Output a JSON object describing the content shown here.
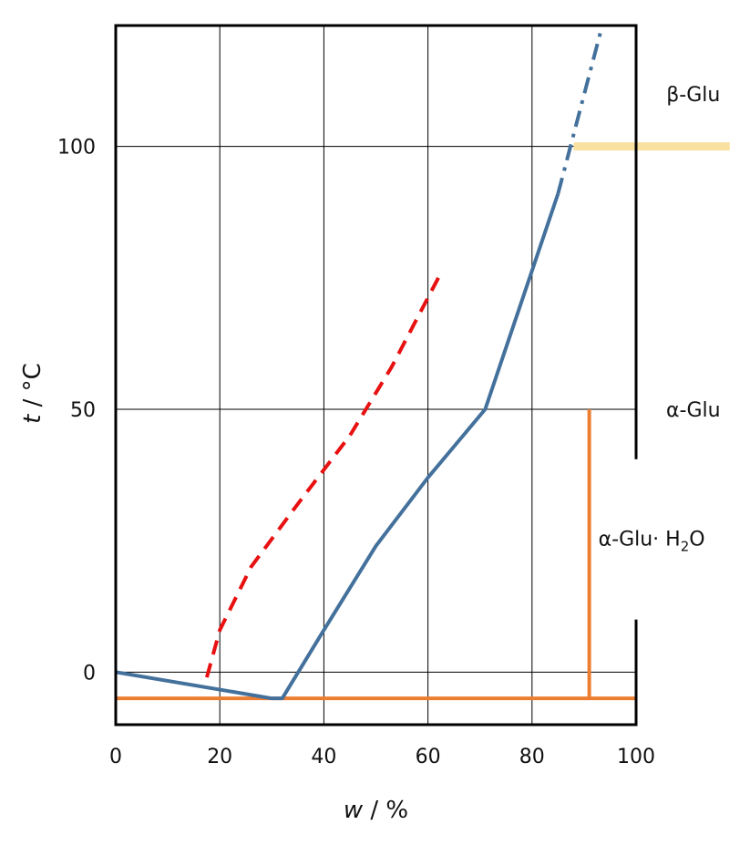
{
  "chart_data": {
    "type": "line",
    "xlabel": {
      "var": "w",
      "unit": " / %"
    },
    "ylabel": {
      "var": "t",
      "unit": " / °C"
    },
    "xlim": [
      0,
      100
    ],
    "ylim": [
      -10,
      123
    ],
    "x_ticks": [
      0,
      20,
      40,
      60,
      80,
      100
    ],
    "y_ticks": [
      0,
      50,
      100
    ],
    "x_tick_labels": [
      "0",
      "20",
      "40",
      "60",
      "80",
      "100"
    ],
    "y_tick_labels": [
      "0",
      "50",
      "100"
    ],
    "grid": true,
    "series": [
      {
        "style": "solid",
        "color": "#44719c",
        "points": [
          [
            0,
            0
          ],
          [
            30,
            -5
          ],
          [
            32,
            -5
          ],
          [
            40,
            8
          ],
          [
            50,
            24
          ],
          [
            60,
            37
          ],
          [
            71,
            50
          ],
          [
            85,
            91
          ]
        ]
      },
      {
        "style": "dashdot",
        "color": "#44719c",
        "points": [
          [
            85,
            91
          ],
          [
            93.5,
            123
          ]
        ]
      },
      {
        "style": "dashed",
        "color": "#e81010",
        "points": [
          [
            17.5,
            -1
          ],
          [
            20,
            8
          ],
          [
            26,
            20
          ],
          [
            35,
            32
          ],
          [
            45,
            45
          ],
          [
            53,
            58
          ],
          [
            62,
            75
          ]
        ]
      }
    ],
    "lines": [
      {
        "color": "#ed7d31",
        "points": [
          [
            0,
            -5
          ],
          [
            100,
            -5
          ]
        ]
      },
      {
        "color": "#ed7d31",
        "points": [
          [
            91,
            -5
          ],
          [
            91,
            50
          ]
        ]
      },
      {
        "color": "#f9e1a0",
        "points": [
          [
            88,
            100
          ],
          [
            118,
            100
          ]
        ]
      }
    ],
    "annotations": [
      {
        "text": "β-Glu",
        "x": 111,
        "y": 110
      },
      {
        "text": "α-Glu",
        "x": 111,
        "y": 50
      },
      {
        "text": "α-Glu· H",
        "sub": "2",
        "tail": "O",
        "x": 103,
        "y": 25.5
      }
    ]
  }
}
